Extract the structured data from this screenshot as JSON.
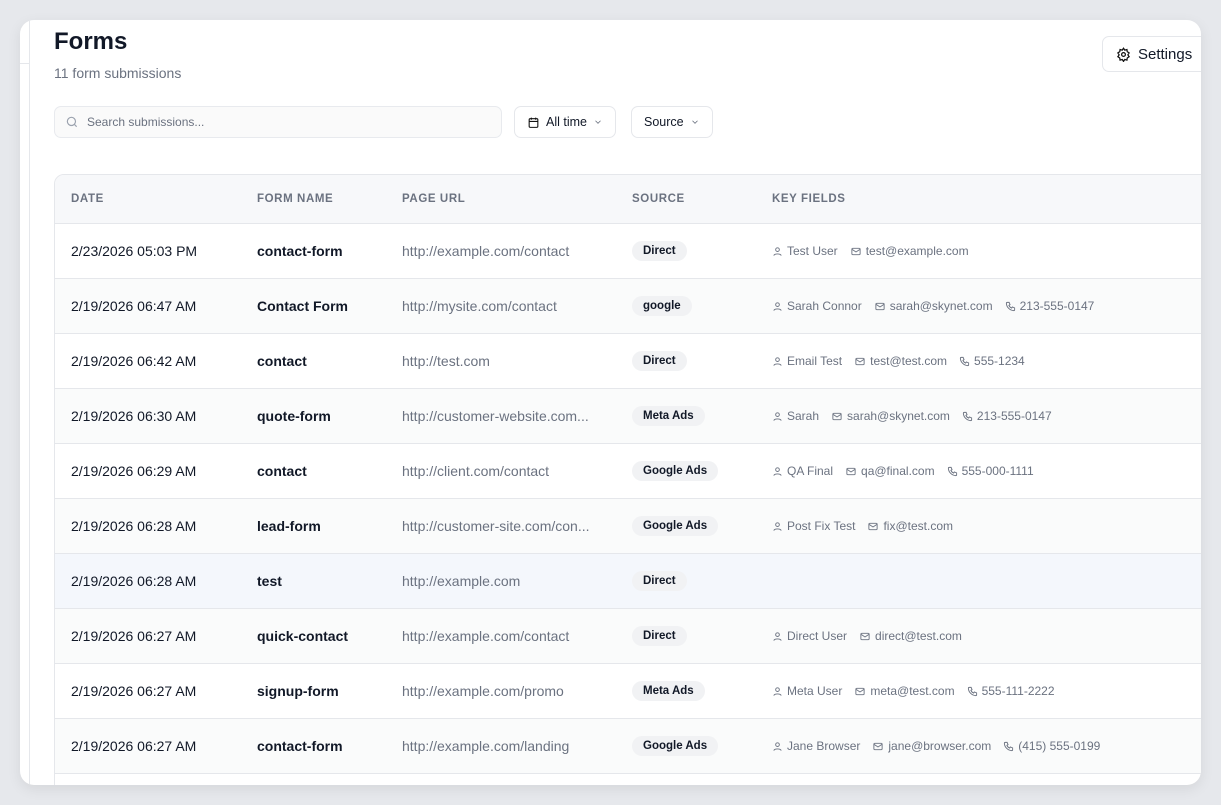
{
  "header": {
    "title": "Forms",
    "subtitle": "11 form submissions",
    "settings_label": "Settings"
  },
  "filters": {
    "search_placeholder": "Search submissions...",
    "date_label": "All time",
    "source_label": "Source"
  },
  "table": {
    "columns": [
      "DATE",
      "FORM NAME",
      "PAGE URL",
      "SOURCE",
      "KEY FIELDS"
    ],
    "rows": [
      {
        "date": "2/23/2026 05:03 PM",
        "form": "contact-form",
        "url": "http://example.com/contact",
        "source": "Direct",
        "name": "Test User",
        "email": "test@example.com",
        "phone": null
      },
      {
        "date": "2/19/2026 06:47 AM",
        "form": "Contact Form",
        "url": "http://mysite.com/contact",
        "source": "google",
        "name": "Sarah Connor",
        "email": "sarah@skynet.com",
        "phone": "213-555-0147"
      },
      {
        "date": "2/19/2026 06:42 AM",
        "form": "contact",
        "url": "http://test.com",
        "source": "Direct",
        "name": "Email Test",
        "email": "test@test.com",
        "phone": "555-1234"
      },
      {
        "date": "2/19/2026 06:30 AM",
        "form": "quote-form",
        "url": "http://customer-website.com...",
        "source": "Meta Ads",
        "name": "Sarah",
        "email": "sarah@skynet.com",
        "phone": "213-555-0147"
      },
      {
        "date": "2/19/2026 06:29 AM",
        "form": "contact",
        "url": "http://client.com/contact",
        "source": "Google Ads",
        "name": "QA Final",
        "email": "qa@final.com",
        "phone": "555-000-1111"
      },
      {
        "date": "2/19/2026 06:28 AM",
        "form": "lead-form",
        "url": "http://customer-site.com/con...",
        "source": "Google Ads",
        "name": "Post Fix Test",
        "email": "fix@test.com",
        "phone": null
      },
      {
        "date": "2/19/2026 06:28 AM",
        "form": "test",
        "url": "http://example.com",
        "source": "Direct",
        "name": null,
        "email": null,
        "phone": null
      },
      {
        "date": "2/19/2026 06:27 AM",
        "form": "quick-contact",
        "url": "http://example.com/contact",
        "source": "Direct",
        "name": "Direct User",
        "email": "direct@test.com",
        "phone": null
      },
      {
        "date": "2/19/2026 06:27 AM",
        "form": "signup-form",
        "url": "http://example.com/promo",
        "source": "Meta Ads",
        "name": "Meta User",
        "email": "meta@test.com",
        "phone": "555-111-2222"
      },
      {
        "date": "2/19/2026 06:27 AM",
        "form": "contact-form",
        "url": "http://example.com/landing",
        "source": "Google Ads",
        "name": "Jane Browser",
        "email": "jane@browser.com",
        "phone": "(415) 555-0199"
      }
    ]
  }
}
